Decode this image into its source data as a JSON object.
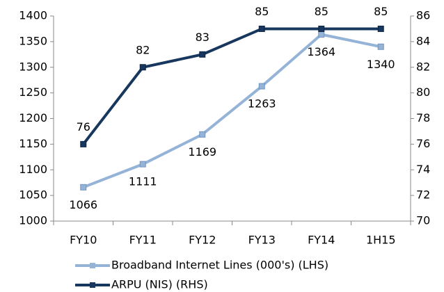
{
  "chart_data": {
    "type": "line",
    "categories": [
      "FY10",
      "FY11",
      "FY12",
      "FY13",
      "FY14",
      "1H15"
    ],
    "series": [
      {
        "name": "Broadband Internet Lines (000's) (LHS)",
        "color": "#95b3d7",
        "values": [
          1066,
          1111,
          1169,
          1263,
          1364,
          1340
        ]
      },
      {
        "name": "ARPU (NIS) (RHS)",
        "color": "#17375e",
        "axis": "y2",
        "values": [
          76,
          82,
          83,
          85,
          85,
          85
        ]
      }
    ],
    "ylim": [
      1000,
      1400
    ],
    "yticks": [
      1000,
      1050,
      1100,
      1150,
      1200,
      1250,
      1300,
      1350,
      1400
    ],
    "y2lim": [
      70,
      86
    ],
    "y2ticks": [
      70,
      72,
      74,
      76,
      78,
      80,
      82,
      84,
      86
    ],
    "grid": false,
    "legend": "bottom"
  }
}
